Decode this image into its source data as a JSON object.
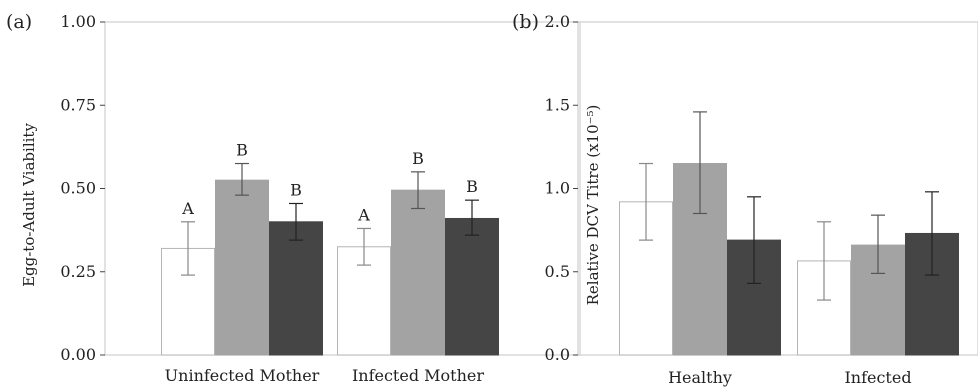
{
  "chart_data": [
    {
      "panel": "(a)",
      "type": "bar",
      "ylabel": "Egg-to-Adult Viability",
      "ylim": [
        0,
        1
      ],
      "yticks": [
        "0.00",
        "0.25",
        "0.50",
        "0.75",
        "1.00"
      ],
      "categories": [
        "Uninfected Mother",
        "Infected Mother"
      ],
      "series_colors": [
        "#ffffff",
        "#a3a3a3",
        "#454545"
      ],
      "series": [
        {
          "values": [
            0.32,
            0.325
          ],
          "err_low": [
            0.24,
            0.27
          ],
          "err_high": [
            0.4,
            0.38
          ],
          "letters": [
            "A",
            "A"
          ]
        },
        {
          "values": [
            0.525,
            0.495
          ],
          "err_low": [
            0.48,
            0.44
          ],
          "err_high": [
            0.575,
            0.55
          ],
          "letters": [
            "B",
            "B"
          ]
        },
        {
          "values": [
            0.4,
            0.41
          ],
          "err_low": [
            0.345,
            0.36
          ],
          "err_high": [
            0.455,
            0.465
          ],
          "letters": [
            "B",
            "B"
          ]
        }
      ]
    },
    {
      "panel": "(b)",
      "type": "bar",
      "ylabel": "Relative DCV Titre (x10⁻⁵)",
      "ylim": [
        0,
        2
      ],
      "yticks": [
        "0.0",
        "0.5",
        "1.0",
        "1.5",
        "2.0"
      ],
      "categories": [
        "Healthy",
        "Infected"
      ],
      "series_colors": [
        "#ffffff",
        "#a3a3a3",
        "#454545"
      ],
      "series": [
        {
          "values": [
            0.92,
            0.565
          ],
          "err_low": [
            0.69,
            0.33
          ],
          "err_high": [
            1.15,
            0.8
          ]
        },
        {
          "values": [
            1.15,
            0.66
          ],
          "err_low": [
            0.85,
            0.49
          ],
          "err_high": [
            1.46,
            0.84
          ]
        },
        {
          "values": [
            0.69,
            0.73
          ],
          "err_low": [
            0.43,
            0.48
          ],
          "err_high": [
            0.95,
            0.98
          ]
        }
      ]
    }
  ]
}
